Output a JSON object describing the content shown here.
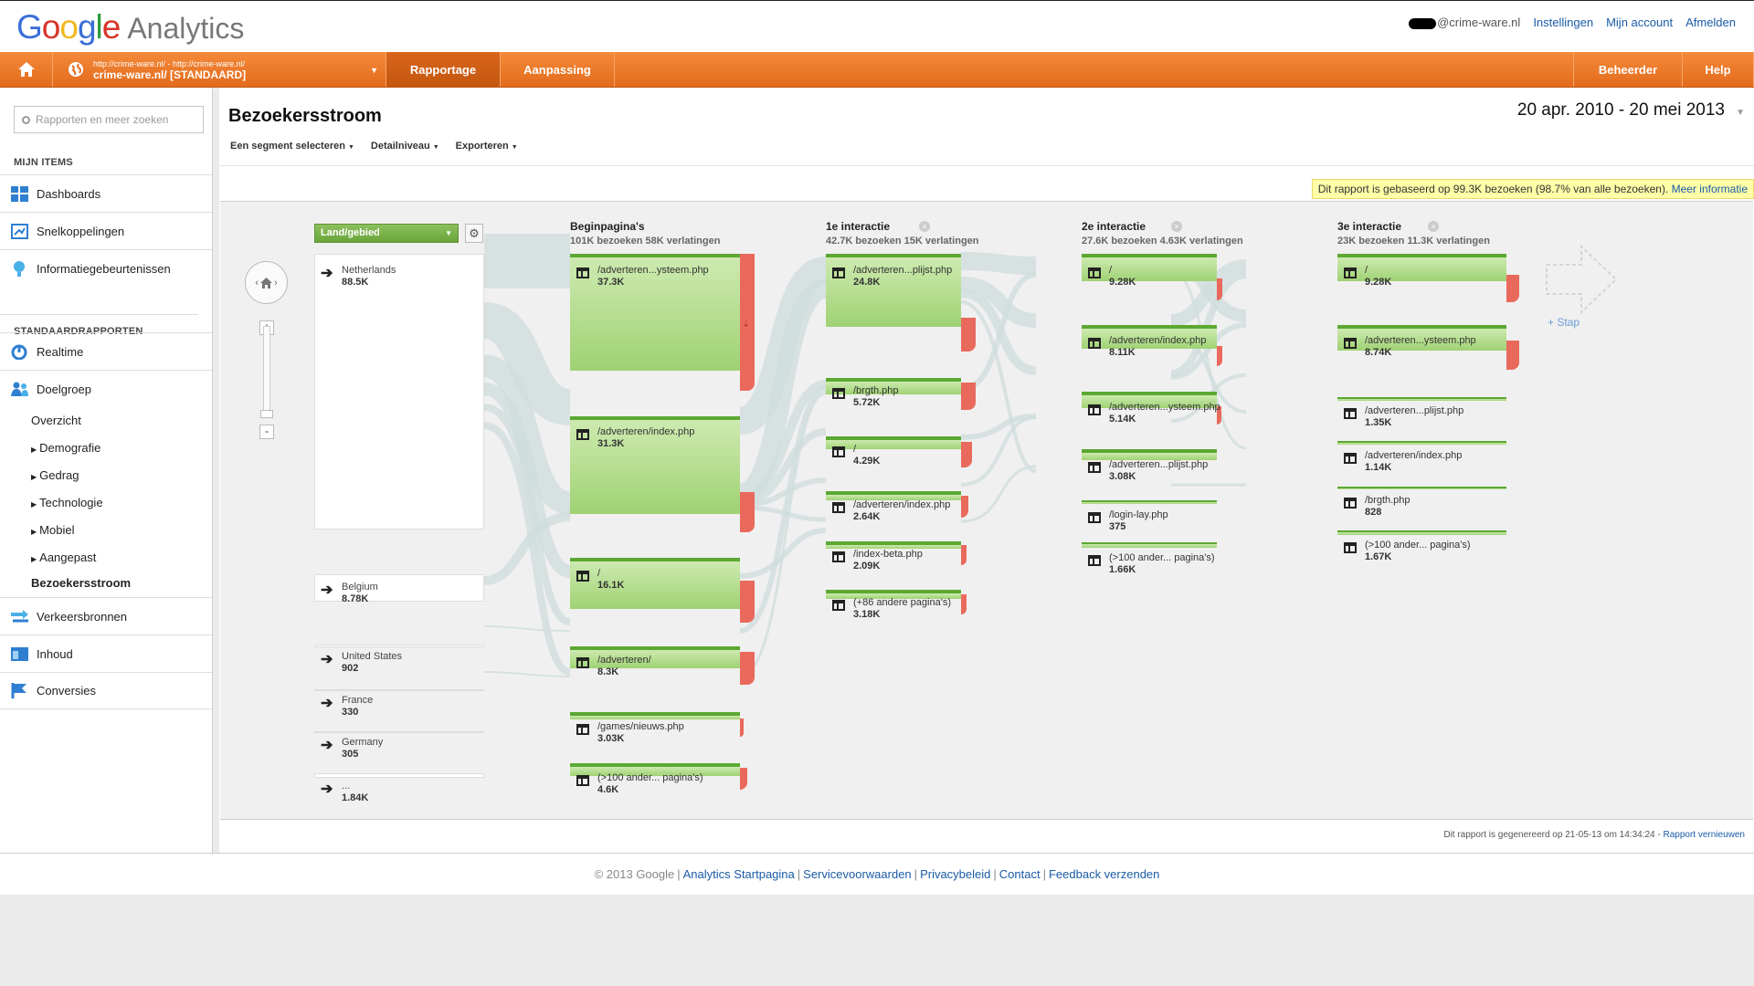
{
  "header": {
    "logo_google": "Google",
    "logo_analytics": "Analytics",
    "user_email": "@crime-ware.nl",
    "links": [
      "Instellingen",
      "Mijn account",
      "Afmelden"
    ]
  },
  "navbar": {
    "profile_url": "http://crime-ware.nl/ - http://crime-ware.nl/",
    "profile_name": "crime-ware.nl/ [STANDAARD]",
    "tabs": [
      "Rapportage",
      "Aanpassing"
    ],
    "right_buttons": [
      "Beheerder",
      "Help"
    ]
  },
  "sidebar": {
    "search_placeholder": "Rapporten en meer zoeken",
    "section_my_items": "MIJN ITEMS",
    "my_items": [
      "Dashboards",
      "Snelkoppelingen",
      "Informatiegebeurtenissen"
    ],
    "section_standard": "STANDAARDRAPPORTEN",
    "realtime": "Realtime",
    "audience": "Doelgroep",
    "audience_sub": [
      "Overzicht",
      "Demografie",
      "Gedrag",
      "Technologie",
      "Mobiel",
      "Aangepast",
      "Bezoekersstroom"
    ],
    "traffic": "Verkeersbronnen",
    "content": "Inhoud",
    "conversions": "Conversies"
  },
  "report": {
    "title": "Bezoekersstroom",
    "date_range": "20 apr. 2010 - 20 mei 2013",
    "toolbar": [
      "Een segment selecteren",
      "Detailniveau",
      "Exporteren"
    ],
    "notice_text": "Dit rapport is gebaseerd op 99.3K bezoeken (98.7% van alle bezoeken).",
    "notice_link": "Meer informatie",
    "dimension": "Land/gebied",
    "step_label": "+ Stap",
    "generated": "Dit rapport is gegenereerd op 21-05-13 om 14:34:24 -",
    "refresh_link": "Rapport vernieuwen"
  },
  "flow": {
    "columns": [
      {
        "title": "Beginpagina's",
        "sub": "101K bezoeken 58K verlatingen"
      },
      {
        "title": "1e interactie",
        "sub": "42.7K bezoeken 15K verlatingen"
      },
      {
        "title": "2e interactie",
        "sub": "27.6K bezoeken 4.63K verlatingen"
      },
      {
        "title": "3e interactie",
        "sub": "23K bezoeken 11.3K verlatingen"
      }
    ],
    "sources": [
      {
        "name": "Netherlands",
        "value": "88.5K"
      },
      {
        "name": "Belgium",
        "value": "8.78K"
      },
      {
        "name": "United States",
        "value": "902"
      },
      {
        "name": "France",
        "value": "330"
      },
      {
        "name": "Germany",
        "value": "305"
      },
      {
        "name": "...",
        "value": "1.84K"
      }
    ],
    "col0": [
      {
        "name": "/adverteren...ysteem.php",
        "value": "37.3K"
      },
      {
        "name": "/adverteren/index.php",
        "value": "31.3K"
      },
      {
        "name": "/",
        "value": "16.1K"
      },
      {
        "name": "/adverteren/",
        "value": "8.3K"
      },
      {
        "name": "/games/nieuws.php",
        "value": "3.03K"
      },
      {
        "name": "(>100 ander... pagina's)",
        "value": "4.6K"
      }
    ],
    "col1": [
      {
        "name": "/adverteren...plijst.php",
        "value": "24.8K"
      },
      {
        "name": "/brgth.php",
        "value": "5.72K"
      },
      {
        "name": "/",
        "value": "4.29K"
      },
      {
        "name": "/adverteren/index.php",
        "value": "2.64K"
      },
      {
        "name": "/index-beta.php",
        "value": "2.09K"
      },
      {
        "name": "(+86 andere pagina's)",
        "value": "3.18K"
      }
    ],
    "col2": [
      {
        "name": "/",
        "value": "9.28K"
      },
      {
        "name": "/adverteren/index.php",
        "value": "8.11K"
      },
      {
        "name": "/adverteren...ysteem.php",
        "value": "5.14K"
      },
      {
        "name": "/adverteren...plijst.php",
        "value": "3.08K"
      },
      {
        "name": "/login-lay.php",
        "value": "375"
      },
      {
        "name": "(>100 ander... pagina's)",
        "value": "1.66K"
      }
    ],
    "col3": [
      {
        "name": "/",
        "value": "9.28K"
      },
      {
        "name": "/adverteren...ysteem.php",
        "value": "8.74K"
      },
      {
        "name": "/adverteren...plijst.php",
        "value": "1.35K"
      },
      {
        "name": "/adverteren/index.php",
        "value": "1.14K"
      },
      {
        "name": "/brgth.php",
        "value": "828"
      },
      {
        "name": "(>100 ander... pagina's)",
        "value": "1.67K"
      }
    ]
  },
  "footer": {
    "copyright": "© 2013 Google",
    "links": [
      "Analytics Startpagina",
      "Servicevoorwaarden",
      "Privacybeleid",
      "Contact",
      "Feedback verzenden"
    ]
  }
}
